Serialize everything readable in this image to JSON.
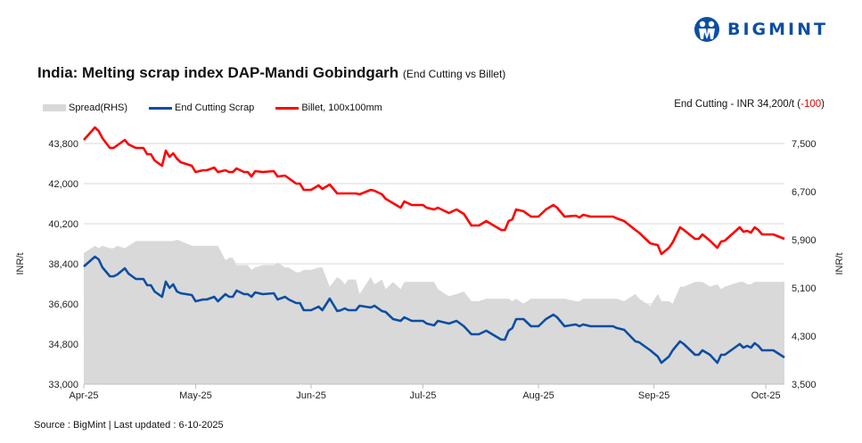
{
  "brand": {
    "name": "BIGMINT",
    "color": "#0d4fa3"
  },
  "title": {
    "main": "India: Melting scrap index DAP-Mandi Gobindgarh",
    "sub": "(End Cutting  vs Billet)"
  },
  "latest": {
    "prefix": "End Cutting - INR 34,200/t (",
    "change": "-100",
    "suffix": ")"
  },
  "source": "Source : BigMint | Last updated : 6-10-2025",
  "chart_data": {
    "type": "line",
    "title": "India: Melting scrap index DAP-Mandi Gobindgarh (End Cutting  vs Billet)",
    "ylabel": "INR/t",
    "y2label": "INR/t",
    "ylim": [
      33000,
      43800
    ],
    "y2lim": [
      3500,
      7500
    ],
    "yticks": [
      "33,000",
      "34,800",
      "36,600",
      "38,400",
      "40,200",
      "42,000",
      "43,800"
    ],
    "y2ticks": [
      "3,500",
      "4,300",
      "5,100",
      "5,900",
      "6,700",
      "7,500"
    ],
    "xticks": [
      {
        "date": "2025-04-01",
        "label": "Apr-25"
      },
      {
        "date": "2025-05-01",
        "label": "May-25"
      },
      {
        "date": "2025-06-01",
        "label": "Jun-25"
      },
      {
        "date": "2025-07-01",
        "label": "Jul-25"
      },
      {
        "date": "2025-08-01",
        "label": "Aug-25"
      },
      {
        "date": "2025-09-01",
        "label": "Sep-25"
      },
      {
        "date": "2025-10-01",
        "label": "Oct-25"
      }
    ],
    "xlim": [
      "2025-04-01",
      "2025-10-06"
    ],
    "grid": true,
    "legend": "top-left",
    "dates": [
      "2025-04-01",
      "2025-04-04",
      "2025-04-05",
      "2025-04-06",
      "2025-04-08",
      "2025-04-09",
      "2025-04-10",
      "2025-04-12",
      "2025-04-13",
      "2025-04-15",
      "2025-04-17",
      "2025-04-18",
      "2025-04-19",
      "2025-04-20",
      "2025-04-22",
      "2025-04-23",
      "2025-04-24",
      "2025-04-25",
      "2025-04-26",
      "2025-04-27",
      "2025-04-30",
      "2025-05-01",
      "2025-05-03",
      "2025-05-04",
      "2025-05-06",
      "2025-05-07",
      "2025-05-09",
      "2025-05-10",
      "2025-05-11",
      "2025-05-12",
      "2025-05-14",
      "2025-05-15",
      "2025-05-16",
      "2025-05-17",
      "2025-05-19",
      "2025-05-22",
      "2025-05-23",
      "2025-05-25",
      "2025-05-26",
      "2025-05-28",
      "2025-05-29",
      "2025-05-30",
      "2025-06-01",
      "2025-06-03",
      "2025-06-04",
      "2025-06-06",
      "2025-06-08",
      "2025-06-09",
      "2025-06-10",
      "2025-06-11",
      "2025-06-13",
      "2025-06-14",
      "2025-06-17",
      "2025-06-18",
      "2025-06-20",
      "2025-06-21",
      "2025-06-23",
      "2025-06-25",
      "2025-06-26",
      "2025-06-28",
      "2025-07-01",
      "2025-07-02",
      "2025-07-04",
      "2025-07-05",
      "2025-07-08",
      "2025-07-10",
      "2025-07-12",
      "2025-07-14",
      "2025-07-16",
      "2025-07-18",
      "2025-07-22",
      "2025-07-23",
      "2025-07-24",
      "2025-07-25",
      "2025-07-26",
      "2025-07-28",
      "2025-07-30",
      "2025-08-01",
      "2025-08-03",
      "2025-08-05",
      "2025-08-06",
      "2025-08-08",
      "2025-08-11",
      "2025-08-12",
      "2025-08-13",
      "2025-08-15",
      "2025-08-21",
      "2025-08-22",
      "2025-08-24",
      "2025-08-27",
      "2025-08-28",
      "2025-08-31",
      "2025-09-02",
      "2025-09-03",
      "2025-09-05",
      "2025-09-06",
      "2025-09-08",
      "2025-09-09",
      "2025-09-12",
      "2025-09-13",
      "2025-09-14",
      "2025-09-16",
      "2025-09-18",
      "2025-09-19",
      "2025-09-20",
      "2025-09-24",
      "2025-09-25",
      "2025-09-26",
      "2025-09-27",
      "2025-09-28",
      "2025-09-29",
      "2025-09-30",
      "2025-10-03",
      "2025-10-06"
    ],
    "series": [
      {
        "name": "Spread(RHS)",
        "axis": "right",
        "type": "area",
        "color": "#d9d9d9",
        "values": [
          5680,
          5800,
          5760,
          5800,
          5760,
          5760,
          5800,
          5760,
          5800,
          5880,
          5880,
          5880,
          5880,
          5880,
          5880,
          5880,
          5880,
          5880,
          5900,
          5880,
          5800,
          5800,
          5800,
          5800,
          5800,
          5800,
          5560,
          5600,
          5600,
          5480,
          5480,
          5480,
          5400,
          5440,
          5480,
          5480,
          5520,
          5440,
          5440,
          5360,
          5360,
          5400,
          5400,
          5440,
          5440,
          5120,
          5280,
          5240,
          5160,
          5240,
          5240,
          5000,
          5280,
          5160,
          5240,
          5080,
          5200,
          5080,
          5200,
          5200,
          5200,
          5200,
          5200,
          5080,
          4960,
          5000,
          5040,
          4880,
          4880,
          4920,
          4920,
          4920,
          4920,
          4880,
          4920,
          4840,
          4920,
          4920,
          4920,
          4920,
          4920,
          4920,
          4880,
          4880,
          4920,
          4920,
          4920,
          4920,
          4880,
          5000,
          4920,
          4800,
          5000,
          4880,
          4880,
          4840,
          5120,
          5120,
          5200,
          5200,
          5200,
          5120,
          5160,
          5080,
          5120,
          5200,
          5200,
          5160,
          5160,
          5200,
          5200,
          5200,
          5200,
          5200
        ]
      },
      {
        "name": "End Cutting Scrap",
        "axis": "left",
        "type": "line",
        "color": "#0b4ea2",
        "values": [
          38280,
          38720,
          38600,
          38240,
          37840,
          37840,
          37920,
          38200,
          37960,
          37720,
          37720,
          37440,
          37440,
          37160,
          36920,
          37600,
          37320,
          37480,
          37160,
          37080,
          37000,
          36720,
          36800,
          36800,
          36920,
          36720,
          37040,
          36920,
          36920,
          37200,
          37040,
          37040,
          36920,
          37120,
          37040,
          37080,
          36800,
          36920,
          36800,
          36640,
          36640,
          36320,
          36320,
          36480,
          36320,
          36840,
          36280,
          36320,
          36400,
          36320,
          36320,
          36520,
          36440,
          36520,
          36280,
          36240,
          35920,
          35840,
          36000,
          35840,
          35840,
          35720,
          35640,
          35840,
          35720,
          35840,
          35600,
          35240,
          35240,
          35400,
          35000,
          35000,
          35400,
          35520,
          35920,
          35920,
          35600,
          35600,
          35920,
          36120,
          36000,
          35600,
          35680,
          35600,
          35680,
          35600,
          35600,
          35520,
          35440,
          34920,
          34880,
          34520,
          34240,
          33960,
          34240,
          34520,
          34920,
          34800,
          34320,
          34320,
          34520,
          34320,
          33960,
          34320,
          34320,
          34800,
          34640,
          34720,
          34640,
          34840,
          34720,
          34520,
          34520,
          34200
        ]
      },
      {
        "name": "Billet, 100x100mm",
        "axis": "left",
        "type": "line",
        "color": "#ff0000",
        "values": [
          43960,
          44520,
          44360,
          44040,
          43600,
          43600,
          43720,
          43960,
          43760,
          43600,
          43600,
          43320,
          43320,
          43040,
          42800,
          43480,
          43200,
          43360,
          43120,
          42960,
          42800,
          42520,
          42600,
          42600,
          42720,
          42520,
          42600,
          42520,
          42520,
          42680,
          42520,
          42520,
          42320,
          42560,
          42520,
          42560,
          42320,
          42360,
          42240,
          42000,
          42000,
          41720,
          41720,
          41920,
          41760,
          41960,
          41560,
          41560,
          41560,
          41560,
          41560,
          41520,
          41720,
          41680,
          41520,
          41320,
          41120,
          40920,
          41200,
          41040,
          41040,
          40920,
          40840,
          40920,
          40680,
          40840,
          40640,
          40120,
          40120,
          40320,
          39920,
          39920,
          40320,
          40400,
          40840,
          40760,
          40520,
          40520,
          40840,
          41040,
          40920,
          40520,
          40560,
          40480,
          40600,
          40520,
          40520,
          40440,
          40320,
          39920,
          39800,
          39320,
          39240,
          38840,
          39120,
          39360,
          40040,
          39920,
          39520,
          39520,
          39720,
          39440,
          39120,
          39400,
          39440,
          40040,
          39840,
          39880,
          39800,
          40040,
          39920,
          39720,
          39720,
          39520
        ]
      }
    ]
  }
}
